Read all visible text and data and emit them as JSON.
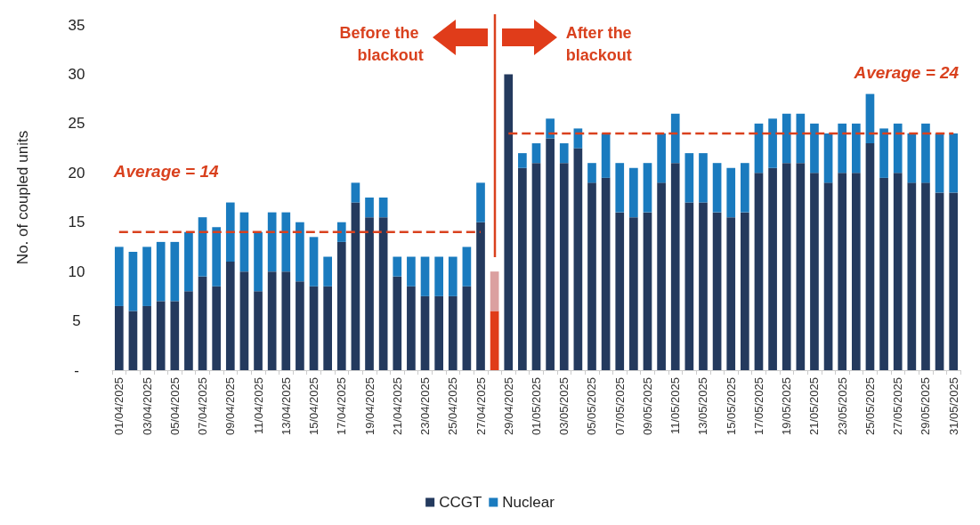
{
  "chart_data": {
    "type": "bar",
    "stacked": true,
    "ylabel": "No. of coupled units",
    "categories": [
      "01/04/2025",
      null,
      "03/04/2025",
      null,
      "05/04/2025",
      null,
      "07/04/2025",
      null,
      "09/04/2025",
      null,
      "11/04/2025",
      null,
      "13/04/2025",
      null,
      "15/04/2025",
      null,
      "17/04/2025",
      null,
      "19/04/2025",
      null,
      "21/04/2025",
      null,
      "23/04/2025",
      null,
      "25/04/2025",
      null,
      "27/04/2025",
      null,
      "29/04/2025",
      null,
      "01/05/2025",
      null,
      "03/05/2025",
      null,
      "05/05/2025",
      null,
      "07/05/2025",
      null,
      "09/05/2025",
      null,
      "11/05/2025",
      null,
      "13/05/2025",
      null,
      "15/05/2025",
      null,
      "17/05/2025",
      null,
      "19/05/2025",
      null,
      "21/05/2025",
      null,
      "23/05/2025",
      null,
      "25/05/2025",
      null,
      "27/05/2025",
      null,
      "29/05/2025",
      null,
      "31/05/2025"
    ],
    "series": [
      {
        "name": "CCGT",
        "color": "#243a5e",
        "colors": [
          "#243a5e",
          "#243a5e",
          "#243a5e",
          "#243a5e",
          "#243a5e",
          "#243a5e",
          "#243a5e",
          "#243a5e",
          "#243a5e",
          "#243a5e",
          "#243a5e",
          "#243a5e",
          "#243a5e",
          "#243a5e",
          "#243a5e",
          "#243a5e",
          "#243a5e",
          "#243a5e",
          "#243a5e",
          "#243a5e",
          "#243a5e",
          "#243a5e",
          "#243a5e",
          "#243a5e",
          "#243a5e",
          "#243a5e",
          "#243a5e",
          "#e03c1a",
          "#243a5e",
          "#243a5e",
          "#243a5e",
          "#243a5e",
          "#243a5e",
          "#243a5e",
          "#243a5e",
          "#243a5e",
          "#243a5e",
          "#243a5e",
          "#243a5e",
          "#243a5e",
          "#243a5e",
          "#243a5e",
          "#243a5e",
          "#243a5e",
          "#243a5e",
          "#243a5e",
          "#243a5e",
          "#243a5e",
          "#243a5e",
          "#243a5e",
          "#243a5e",
          "#243a5e",
          "#243a5e",
          "#243a5e",
          "#243a5e",
          "#243a5e",
          "#243a5e",
          "#243a5e",
          "#243a5e",
          "#243a5e",
          "#243a5e"
        ],
        "values": [
          6.5,
          6,
          6.5,
          7,
          7,
          8,
          9.5,
          8.5,
          11,
          10,
          8,
          10,
          10,
          9,
          8.5,
          8.5,
          13,
          17,
          15.5,
          15.5,
          9.5,
          8.5,
          7.5,
          7.5,
          7.5,
          8.5,
          15,
          6,
          30,
          20.5,
          21,
          23.5,
          21,
          22.5,
          19,
          19.5,
          16,
          15.5,
          16,
          19,
          21,
          17,
          17,
          16,
          15.5,
          16,
          20,
          20.5,
          21,
          21,
          20,
          19,
          20,
          20,
          23,
          19.5,
          20,
          19,
          19,
          18,
          18
        ]
      },
      {
        "name": "Nuclear",
        "color": "#1a7bbf",
        "colors": [
          "#1a7bbf",
          "#1a7bbf",
          "#1a7bbf",
          "#1a7bbf",
          "#1a7bbf",
          "#1a7bbf",
          "#1a7bbf",
          "#1a7bbf",
          "#1a7bbf",
          "#1a7bbf",
          "#1a7bbf",
          "#1a7bbf",
          "#1a7bbf",
          "#1a7bbf",
          "#1a7bbf",
          "#1a7bbf",
          "#1a7bbf",
          "#1a7bbf",
          "#1a7bbf",
          "#1a7bbf",
          "#1a7bbf",
          "#1a7bbf",
          "#1a7bbf",
          "#1a7bbf",
          "#1a7bbf",
          "#1a7bbf",
          "#1a7bbf",
          "#dba0a0",
          "#1a7bbf",
          "#1a7bbf",
          "#1a7bbf",
          "#1a7bbf",
          "#1a7bbf",
          "#1a7bbf",
          "#1a7bbf",
          "#1a7bbf",
          "#1a7bbf",
          "#1a7bbf",
          "#1a7bbf",
          "#1a7bbf",
          "#1a7bbf",
          "#1a7bbf",
          "#1a7bbf",
          "#1a7bbf",
          "#1a7bbf",
          "#1a7bbf",
          "#1a7bbf",
          "#1a7bbf",
          "#1a7bbf",
          "#1a7bbf",
          "#1a7bbf",
          "#1a7bbf",
          "#1a7bbf",
          "#1a7bbf",
          "#1a7bbf",
          "#1a7bbf",
          "#1a7bbf",
          "#1a7bbf",
          "#1a7bbf",
          "#1a7bbf",
          "#1a7bbf"
        ],
        "values": [
          6,
          6,
          6,
          6,
          6,
          6,
          6,
          6,
          6,
          6,
          6,
          6,
          6,
          6,
          5,
          3,
          2,
          2,
          2,
          2,
          2,
          3,
          4,
          4,
          4,
          4,
          4,
          4,
          0,
          1.5,
          2,
          2,
          2,
          2,
          2,
          4.5,
          5,
          5,
          5,
          5,
          5,
          5,
          5,
          5,
          5,
          5,
          5,
          5,
          5,
          5,
          5,
          5,
          5,
          5,
          5,
          5,
          5,
          5,
          6,
          6,
          6
        ]
      },
      {
        "type": "line",
        "color": "#d9411e",
        "line_style": "dashed",
        "marker": "none",
        "x": [
          "01/04/2025",
          "27/04/2025"
        ],
        "values": [
          14,
          14
        ]
      },
      {
        "type": "line",
        "color": "#d9411e",
        "line_style": "dashed",
        "marker": "none",
        "x": [
          "29/04/2025",
          "31/05/2025"
        ],
        "values": [
          24,
          24
        ]
      }
    ],
    "ylim": [
      0,
      35
    ],
    "yticks": [
      {
        "value": 0,
        "label": "-"
      },
      5,
      10,
      15,
      20,
      25,
      30,
      35
    ],
    "grid": false,
    "legend": "bottom",
    "annotations": [
      "Average = 14",
      "Average = 24",
      "Before the blackout",
      "After the blackout"
    ]
  }
}
